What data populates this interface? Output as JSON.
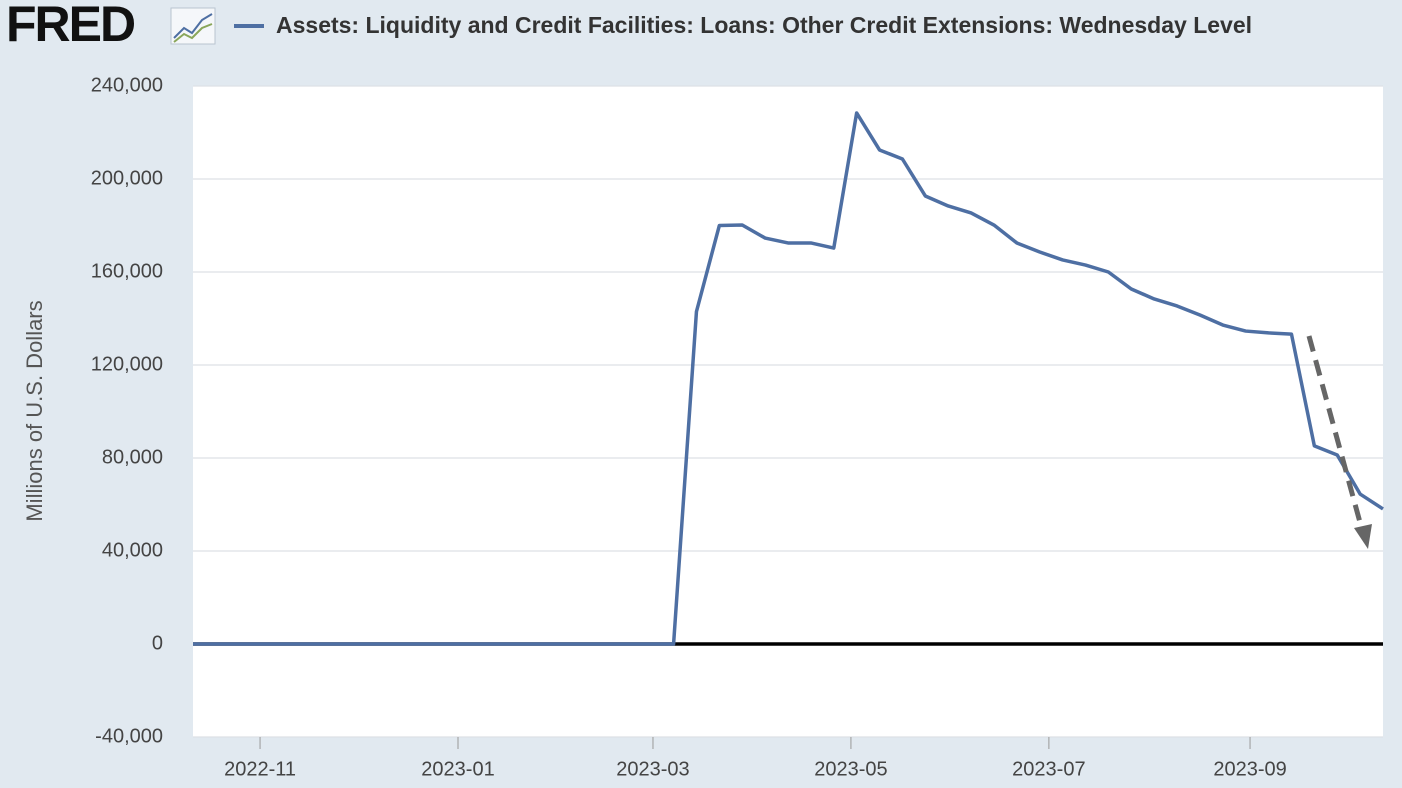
{
  "logo": "FRED",
  "chart_data": {
    "type": "line",
    "title": "Assets: Liquidity and Credit Facilities: Loans: Other Credit Extensions: Wednesday Level",
    "y_label": "Millions of U.S. Dollars",
    "categories": [
      null,
      null,
      null,
      null,
      null,
      null,
      null,
      null,
      null,
      null,
      null,
      null,
      null,
      null,
      null,
      null,
      null,
      null,
      null,
      null,
      null,
      null,
      null,
      null,
      null,
      null,
      null,
      null,
      null,
      null,
      null,
      null,
      null,
      null,
      null,
      null,
      null,
      null,
      null,
      null,
      null,
      null,
      null,
      null,
      null,
      null,
      null,
      null,
      null,
      null,
      null,
      null,
      null
    ],
    "series": [
      {
        "name": "Assets: Liquidity and Credit Facilities: Loans: Other Credit Extensions: Wednesday Level",
        "color": "#4e6fa3",
        "values": [
          0,
          0,
          0,
          0,
          0,
          0,
          0,
          0,
          0,
          0,
          0,
          0,
          0,
          0,
          0,
          0,
          0,
          0,
          0,
          0,
          0,
          0,
          143000,
          180000,
          180200,
          174600,
          172500,
          172500,
          170300,
          228400,
          212500,
          208600,
          192700,
          188400,
          185400,
          180200,
          172500,
          168600,
          165200,
          163000,
          160000,
          152700,
          148400,
          145400,
          141500,
          137200,
          134600,
          133800,
          133300,
          85200,
          81300,
          64500,
          58100
        ]
      }
    ],
    "xticks": [
      {
        "value": 2.93,
        "label": "2022-11"
      },
      {
        "value": 11.58,
        "label": "2023-01"
      },
      {
        "value": 20.1,
        "label": "2023-03"
      },
      {
        "value": 28.75,
        "label": "2023-05"
      },
      {
        "value": 37.4,
        "label": "2023-07"
      },
      {
        "value": 46.19,
        "label": "2023-09"
      }
    ],
    "ylim": [
      -40000,
      240000
    ],
    "yticks": [
      {
        "value": -40000,
        "label": "-40,000"
      },
      {
        "value": 0,
        "label": "0"
      },
      {
        "value": 40000,
        "label": "40,000"
      },
      {
        "value": 80000,
        "label": "80,000"
      },
      {
        "value": 120000,
        "label": "120,000"
      },
      {
        "value": 160000,
        "label": "160,000"
      },
      {
        "value": 200000,
        "label": "200,000"
      },
      {
        "value": 240000,
        "label": "240,000"
      }
    ],
    "grid": true
  }
}
